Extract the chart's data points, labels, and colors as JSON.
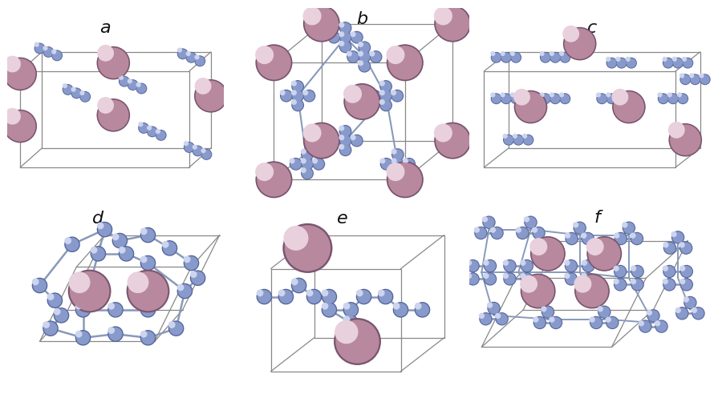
{
  "background": "#ffffff",
  "labels": [
    "a",
    "b",
    "c",
    "d",
    "e",
    "f"
  ],
  "label_fontsize": 16,
  "hg_color": "#b8899e",
  "hg_highlight": "#e8d0dc",
  "hg_dark": "#7a5570",
  "n_color": "#8899cc",
  "n_highlight": "#ccd4ee",
  "n_dark": "#556699",
  "bond_color": "#8899bb",
  "bond_lw": 1.8,
  "cell_color": "#888888",
  "cell_lw": 0.9,
  "hg_s": 1800,
  "hg_s_small": 1200,
  "hg_s_large": 2400,
  "n_s": 220,
  "n_s_small": 160
}
